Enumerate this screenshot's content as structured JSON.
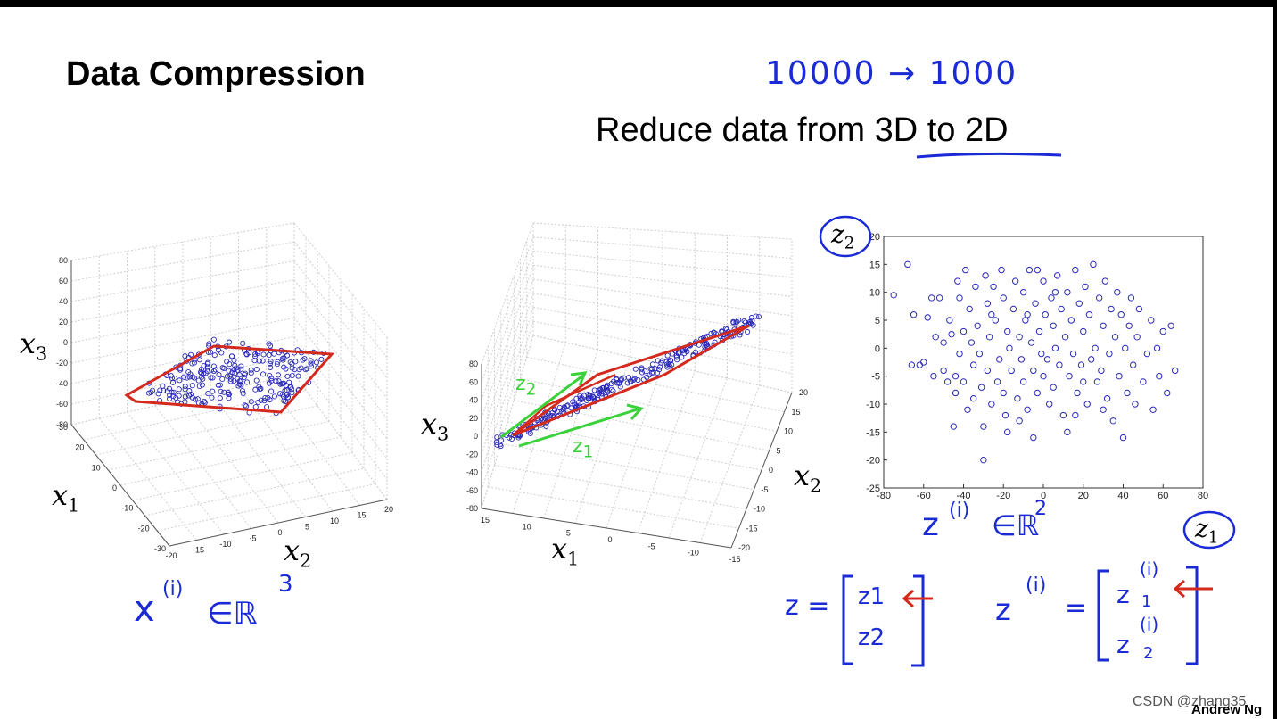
{
  "slide": {
    "title": "Data Compression",
    "subtitle": "Reduce data from 3D to 2D",
    "handwritten_top": "10000 → 1000",
    "footer_author": "Andrew Ng",
    "watermark": "CSDN @zhang35"
  },
  "left_plot": {
    "axis_labels": {
      "x3": "x",
      "x3_sub": "3",
      "x1": "x",
      "x1_sub": "1",
      "x2": "x",
      "x2_sub": "2"
    },
    "z_ticks": [
      "80",
      "60",
      "40",
      "20",
      "0",
      "-20",
      "-40",
      "-60",
      "-80"
    ],
    "x1_ticks": [
      "30",
      "20",
      "10",
      "0",
      "-10",
      "-20",
      "-30"
    ],
    "x2_ticks": [
      "-20",
      "-15",
      "-10",
      "-5",
      "0",
      "5",
      "10",
      "15",
      "20"
    ],
    "annotation": "x",
    "annotation_sup": "(i)",
    "annotation_rest": "∈ℝ",
    "annotation_dim": "3"
  },
  "middle_plot": {
    "axis_labels": {
      "x3": "x",
      "x3_sub": "3",
      "x1": "x",
      "x1_sub": "1",
      "x2": "x",
      "x2_sub": "2"
    },
    "z_ticks": [
      "80",
      "60",
      "40",
      "20",
      "0",
      "-20",
      "-40",
      "-60",
      "-80"
    ],
    "x1_ticks": [
      "15",
      "10",
      "5",
      "0",
      "-5",
      "-10",
      "-15"
    ],
    "x2_ticks": [
      "20",
      "15",
      "10",
      "5",
      "0",
      "-5",
      "-10",
      "-15",
      "-20"
    ],
    "z1_label": "z",
    "z1_sub": "1",
    "z2_label": "z",
    "z2_sub": "2"
  },
  "chart_data": {
    "type": "scatter",
    "title": "",
    "xlabel": "z1",
    "ylabel": "z2",
    "xlim": [
      -80,
      80
    ],
    "ylim": [
      -25,
      20
    ],
    "x_ticks": [
      "-80",
      "-60",
      "-40",
      "-20",
      "0",
      "20",
      "40",
      "60",
      "80"
    ],
    "y_ticks": [
      "20",
      "15",
      "10",
      "5",
      "0",
      "-5",
      "-10",
      "-15",
      "-20",
      "-25"
    ],
    "marker_color": "#2a2ab8",
    "points": [
      [
        -75,
        9.5
      ],
      [
        -68,
        15
      ],
      [
        -65,
        6
      ],
      [
        -62,
        -3
      ],
      [
        -60,
        -2.5
      ],
      [
        -58,
        5.5
      ],
      [
        -56,
        9
      ],
      [
        -55,
        -5
      ],
      [
        -54,
        2
      ],
      [
        -52,
        9
      ],
      [
        -50,
        1
      ],
      [
        -50,
        -4
      ],
      [
        -48,
        -6
      ],
      [
        -47,
        5
      ],
      [
        -46,
        2.5
      ],
      [
        -45,
        -14
      ],
      [
        -44,
        -8
      ],
      [
        -43,
        12
      ],
      [
        -42,
        9
      ],
      [
        -42,
        -1
      ],
      [
        -40,
        3
      ],
      [
        -40,
        -6
      ],
      [
        -39,
        14
      ],
      [
        -38,
        -11
      ],
      [
        -37,
        7
      ],
      [
        -36,
        1
      ],
      [
        -35,
        -3
      ],
      [
        -35,
        -9
      ],
      [
        -34,
        11
      ],
      [
        -33,
        4
      ],
      [
        -32,
        -1
      ],
      [
        -31,
        -7
      ],
      [
        -30,
        -20
      ],
      [
        -30,
        -14
      ],
      [
        -29,
        13
      ],
      [
        -28,
        8
      ],
      [
        -28,
        -4
      ],
      [
        -27,
        2
      ],
      [
        -26,
        -10
      ],
      [
        -25,
        11
      ],
      [
        -24,
        5
      ],
      [
        -23,
        -6
      ],
      [
        -22,
        -2
      ],
      [
        -21,
        14
      ],
      [
        -20,
        9
      ],
      [
        -20,
        -8
      ],
      [
        -19,
        -12
      ],
      [
        -18,
        3
      ],
      [
        -17,
        0
      ],
      [
        -16,
        -4
      ],
      [
        -15,
        7
      ],
      [
        -14,
        12
      ],
      [
        -13,
        -9
      ],
      [
        -12,
        2
      ],
      [
        -11,
        -2
      ],
      [
        -10,
        10
      ],
      [
        -10,
        -6
      ],
      [
        -9,
        5
      ],
      [
        -8,
        -11
      ],
      [
        -7,
        14
      ],
      [
        -6,
        1
      ],
      [
        -5,
        -16
      ],
      [
        -5,
        -4
      ],
      [
        -4,
        8
      ],
      [
        -3,
        -8
      ],
      [
        -2,
        3
      ],
      [
        -1,
        -1
      ],
      [
        0,
        12
      ],
      [
        0,
        -5
      ],
      [
        1,
        6
      ],
      [
        2,
        -2
      ],
      [
        3,
        -10
      ],
      [
        4,
        9
      ],
      [
        5,
        4
      ],
      [
        5,
        -7
      ],
      [
        6,
        0
      ],
      [
        7,
        13
      ],
      [
        8,
        -3
      ],
      [
        9,
        7
      ],
      [
        10,
        -12
      ],
      [
        11,
        2
      ],
      [
        12,
        10
      ],
      [
        13,
        -5
      ],
      [
        14,
        5
      ],
      [
        15,
        -1
      ],
      [
        16,
        14
      ],
      [
        17,
        -8
      ],
      [
        18,
        8
      ],
      [
        19,
        -3
      ],
      [
        20,
        3
      ],
      [
        21,
        11
      ],
      [
        22,
        -10
      ],
      [
        23,
        6
      ],
      [
        24,
        -2
      ],
      [
        25,
        15
      ],
      [
        26,
        0
      ],
      [
        27,
        -6
      ],
      [
        28,
        9
      ],
      [
        29,
        -4
      ],
      [
        30,
        4
      ],
      [
        31,
        12
      ],
      [
        32,
        -9
      ],
      [
        33,
        -1
      ],
      [
        34,
        7
      ],
      [
        35,
        -13
      ],
      [
        36,
        2
      ],
      [
        37,
        10
      ],
      [
        38,
        -5
      ],
      [
        39,
        6
      ],
      [
        40,
        -16
      ],
      [
        41,
        0
      ],
      [
        42,
        -8
      ],
      [
        43,
        4
      ],
      [
        44,
        9
      ],
      [
        45,
        -3
      ],
      [
        46,
        -10
      ],
      [
        47,
        2
      ],
      [
        48,
        7
      ],
      [
        50,
        -6
      ],
      [
        52,
        -1
      ],
      [
        54,
        5
      ],
      [
        55,
        -11
      ],
      [
        57,
        0
      ],
      [
        58,
        -5
      ],
      [
        60,
        3
      ],
      [
        62,
        -8
      ],
      [
        64,
        4
      ],
      [
        66,
        -4
      ],
      [
        -66,
        -3
      ],
      [
        -3,
        14
      ],
      [
        12,
        -15
      ],
      [
        -18,
        -15
      ],
      [
        30,
        -11
      ],
      [
        -8,
        6
      ],
      [
        6,
        10
      ],
      [
        -26,
        6
      ],
      [
        20,
        -6
      ],
      [
        -12,
        -13
      ],
      [
        16,
        -12
      ],
      [
        -44,
        -5
      ]
    ]
  },
  "bottom_math": {
    "z_vec_lhs": "z =",
    "z_vec_entries": [
      "z1",
      "z2"
    ],
    "zi_lhs": "z",
    "zi_sup": "(i)",
    "zi_eq": "=",
    "zi_entries": [
      "z",
      "z"
    ],
    "zi_entry_sup": "(i)",
    "zi_entry_subs": [
      "1",
      "2"
    ],
    "scatter_caption": "z",
    "scatter_caption_sup": "(i)",
    "scatter_caption_rest": "∈ℝ",
    "scatter_caption_dim": "2",
    "circled_z1": "z",
    "circled_z1_sub": "1",
    "circled_z2": "z",
    "circled_z2_sub": "2"
  },
  "colors": {
    "handwriting_blue": "#1a2ad6",
    "red_plane": "#d42a1e",
    "green_arrow": "#3ad13a",
    "marker": "#2a2ab8"
  }
}
